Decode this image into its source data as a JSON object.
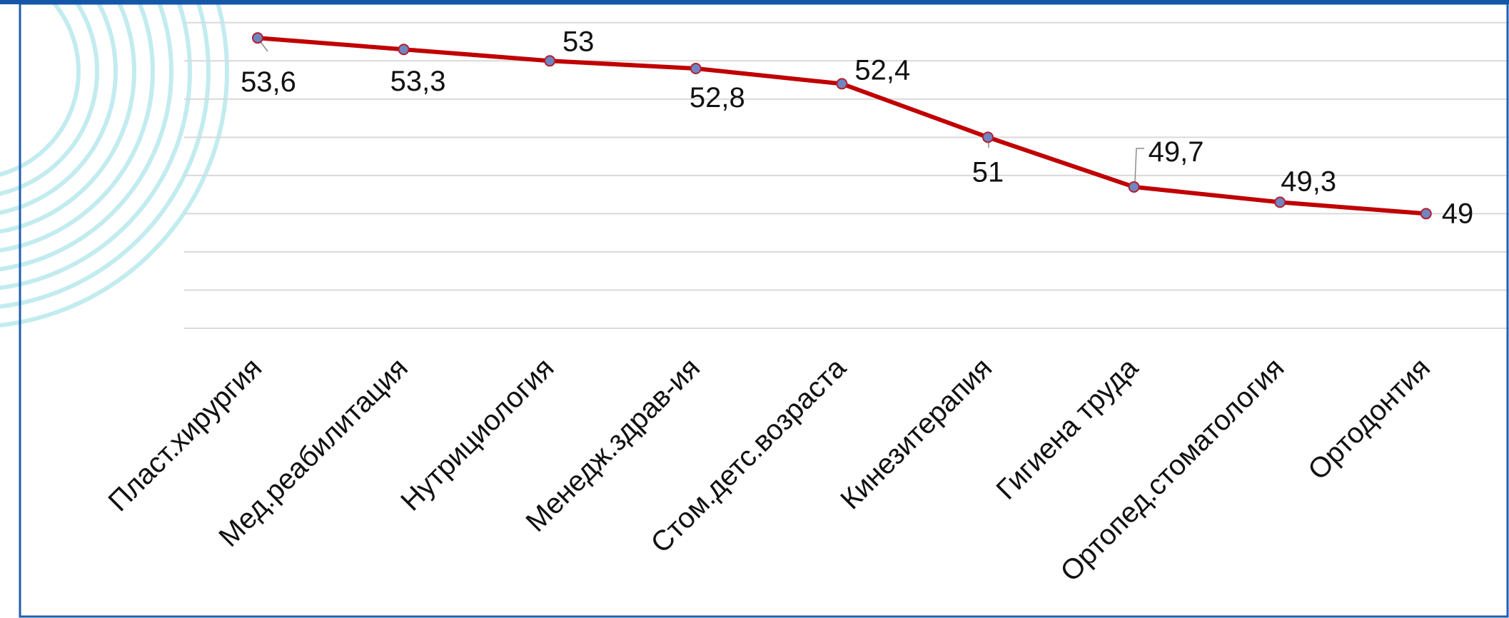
{
  "colors": {
    "frame": "#1f5fb0",
    "top_bar": "#1556a8",
    "gridline": "#d9d9d9",
    "series_line": "#c00000",
    "marker_fill": "#6f86c2",
    "marker_stroke": "#b22030",
    "decor_stripe": "#aee6ea",
    "text": "#111111"
  },
  "chart_data": {
    "type": "line",
    "title": "",
    "xlabel": "",
    "ylabel": "",
    "categories": [
      "Пласт.хирургия",
      "Мед.реабилитация",
      "Нутрициология",
      "Менедж.здрав-ия",
      "Стом.детс.возраста",
      "Кинезитерапия",
      "Гигиена труда",
      "Ортопед.стоматология",
      "Ортодонтия"
    ],
    "series": [
      {
        "values": [
          53.6,
          53.3,
          53,
          52.8,
          52.4,
          51,
          49.7,
          49.3,
          49
        ],
        "labels": [
          "53,6",
          "53,3",
          "53",
          "52,8",
          "52,4",
          "51",
          "49,7",
          "49,3",
          "49"
        ]
      }
    ],
    "ylim": [
      46,
      54.5
    ],
    "y_gridline_step": 1,
    "grid": true,
    "legend": "none",
    "data_labels": true
  }
}
